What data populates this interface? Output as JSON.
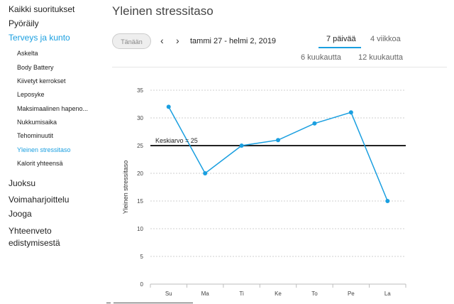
{
  "sidebar": {
    "top_items": [
      {
        "label": "Kaikki suoritukset",
        "active": false
      },
      {
        "label": "Pyöräily",
        "active": false
      },
      {
        "label": "Terveys ja kunto",
        "active": true
      }
    ],
    "sub_items": [
      {
        "label": "Askelta",
        "active": false
      },
      {
        "label": "Body Battery",
        "active": false
      },
      {
        "label": "Kiivetyt kerrokset",
        "active": false
      },
      {
        "label": "Leposyke",
        "active": false
      },
      {
        "label": "Maksimaalinen hapeno...",
        "active": false
      },
      {
        "label": "Nukkumisaika",
        "active": false
      },
      {
        "label": "Tehominuutit",
        "active": false
      },
      {
        "label": "Yleinen stressitaso",
        "active": true
      },
      {
        "label": "Kalorit yhteensä",
        "active": false
      }
    ],
    "bottom_items": [
      {
        "label": "Juoksu"
      },
      {
        "label": "Voimaharjoittelu"
      },
      {
        "label": "Jooga"
      },
      {
        "label": "Yhteenveto edistymisestä"
      }
    ]
  },
  "header": {
    "title": "Yleinen stressitaso",
    "today_label": "Tänään",
    "prev_icon": "chevron-left-icon",
    "next_icon": "chevron-right-icon",
    "date_range": "tammi 27 - helmi 2, 2019",
    "periods": [
      "7 päivää",
      "4 viikkoa",
      "6 kuukautta",
      "12 kuukautta"
    ],
    "active_period": "7 päivää"
  },
  "colors": {
    "accent": "#1a9fe0",
    "series": "#1a9fe0",
    "average_line": "#222222"
  },
  "chart_data": {
    "type": "line",
    "categories": [
      "Su",
      "Ma",
      "Ti",
      "Ke",
      "To",
      "Pe",
      "La"
    ],
    "series": [
      {
        "values": [
          32,
          20,
          25,
          26,
          29,
          31,
          15
        ]
      }
    ],
    "ylabel": "Yleinen stressitaso",
    "xlabel": "",
    "ylim": [
      0,
      35
    ],
    "yticks": [
      0,
      5,
      10,
      15,
      20,
      25,
      30,
      35
    ],
    "grid": true,
    "average": {
      "value": 25,
      "label": "Keskiarvo = 25"
    }
  }
}
